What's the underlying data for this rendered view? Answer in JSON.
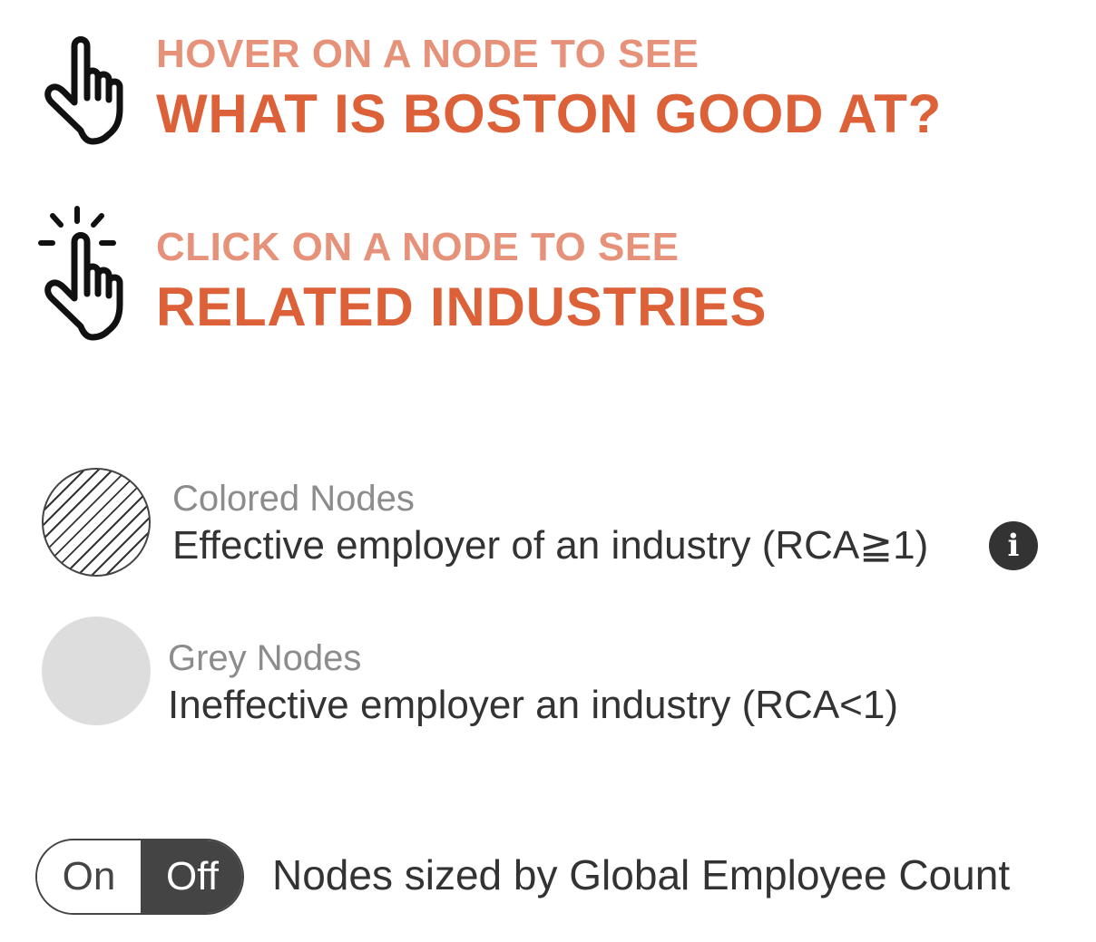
{
  "hover_hint": {
    "kicker": "HOVER ON A NODE TO SEE",
    "headline": "WHAT IS BOSTON GOOD AT?",
    "icon": "hand-pointer-icon"
  },
  "click_hint": {
    "kicker": "CLICK ON A NODE TO SEE",
    "headline": "RELATED INDUSTRIES",
    "icon": "hand-click-icon"
  },
  "legend": {
    "colored": {
      "title": "Colored Nodes",
      "description": "Effective employer of an industry  (RCA≧1)",
      "info_icon": "i"
    },
    "grey": {
      "title": "Grey Nodes",
      "description": "Ineffective employer an industry   (RCA<1)"
    }
  },
  "size_toggle": {
    "on_label": "On",
    "off_label": "Off",
    "selected": "Off",
    "label": "Nodes sized by Global Employee Count"
  },
  "colors": {
    "accent": "#dd6138",
    "accent_light": "#e6927a",
    "text": "#333333",
    "muted": "#8c8c8c",
    "grey_node": "#dddddd",
    "toggle_active": "#444444"
  }
}
